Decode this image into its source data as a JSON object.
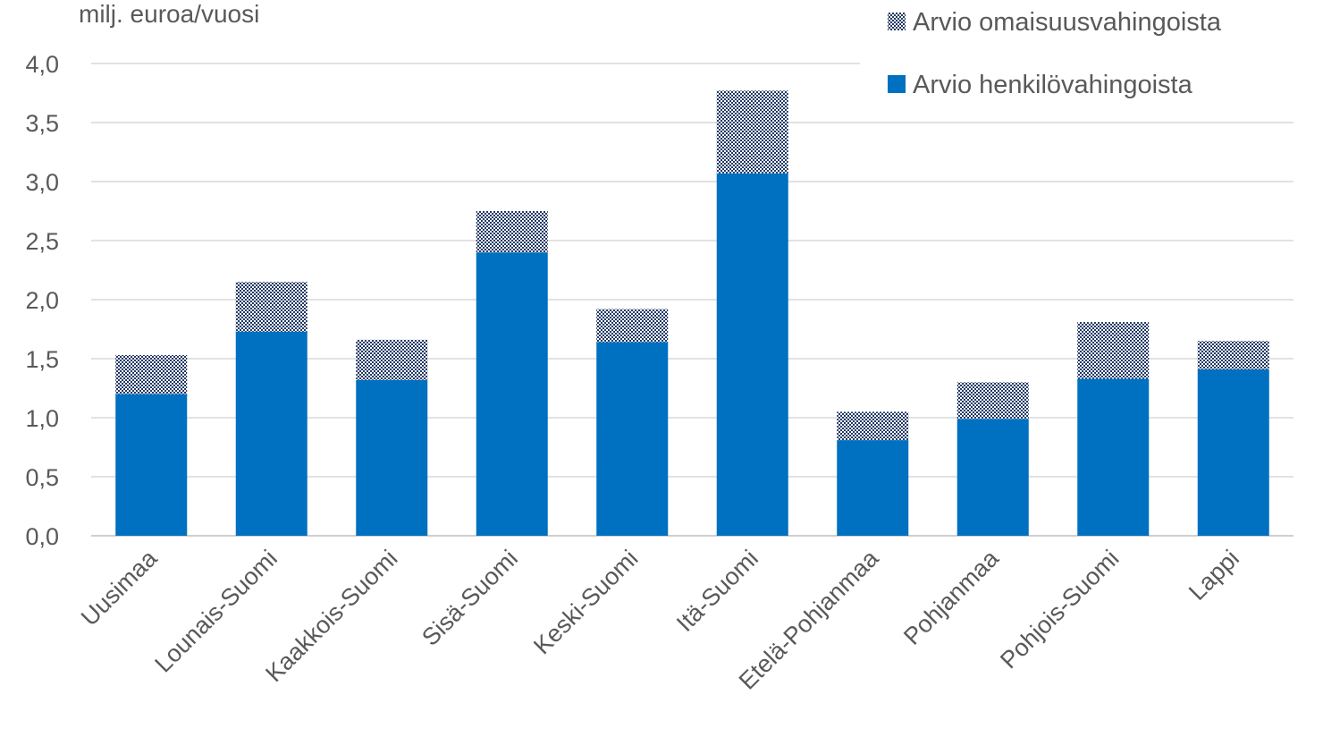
{
  "chart_data": {
    "type": "bar",
    "stacked": true,
    "ylabel": "milj. euroa/vuosi",
    "ylim": [
      0,
      4.0
    ],
    "yticks": [
      "0,0",
      "0,5",
      "1,0",
      "1,5",
      "2,0",
      "2,5",
      "3,0",
      "3,5",
      "4,0"
    ],
    "grid": true,
    "legend_position": "top-right",
    "categories": [
      "Uusimaa",
      "Lounais-Suomi",
      "Kaakkois-Suomi",
      "Sisä-Suomi",
      "Keski-Suomi",
      "Itä-Suomi",
      "Etelä-Pohjanmaa",
      "Pohjanmaa",
      "Pohjois-Suomi",
      "Lappi"
    ],
    "series": [
      {
        "name": "Arvio henkilövahingoista",
        "color": "#0070c0",
        "pattern": "solid",
        "values": [
          1.2,
          1.73,
          1.32,
          2.4,
          1.64,
          3.07,
          0.81,
          0.99,
          1.33,
          1.41
        ]
      },
      {
        "name": "Arvio omaisuusvahingoista",
        "color": "#1f3864",
        "pattern": "dotted",
        "values": [
          0.33,
          0.42,
          0.34,
          0.35,
          0.28,
          0.7,
          0.24,
          0.31,
          0.48,
          0.24
        ]
      }
    ]
  }
}
